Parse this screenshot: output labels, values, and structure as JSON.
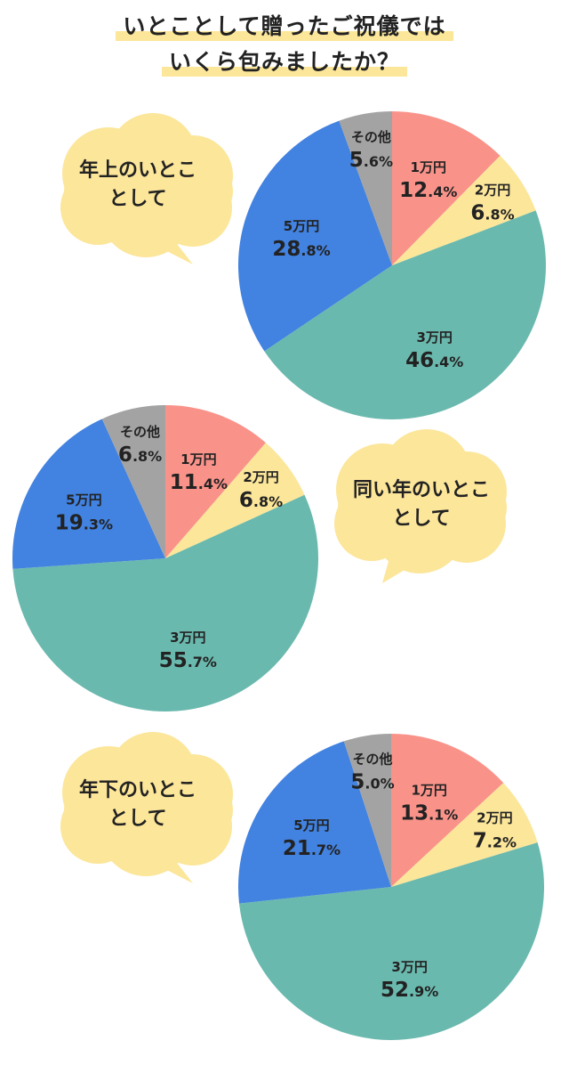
{
  "title": {
    "line1": "いとことして贈ったご祝儀では",
    "line2": "いくら包みましたか？"
  },
  "colors": {
    "1万円": "#f9938a",
    "2万円": "#fce69a",
    "3万円": "#6ab9ae",
    "5万円": "#4282e0",
    "その他": "#a3a3a3",
    "bubble": "#fce69a",
    "highlight": "#fce69a"
  },
  "chart_data": [
    {
      "type": "pie",
      "title": "年上のいとこ\nとして",
      "title_lines": [
        "年上のいとこ",
        "として"
      ],
      "slices": [
        {
          "label": "1万円",
          "value": 12.4,
          "display": "12.4%"
        },
        {
          "label": "2万円",
          "value": 6.8,
          "display": "6.8%"
        },
        {
          "label": "3万円",
          "value": 46.4,
          "display": "46.4%"
        },
        {
          "label": "5万円",
          "value": 28.8,
          "display": "28.8%"
        },
        {
          "label": "その他",
          "value": 5.6,
          "display": "5.6%"
        }
      ]
    },
    {
      "type": "pie",
      "title": "同い年のいとこ\nとして",
      "title_lines": [
        "同い年のいとこ",
        "として"
      ],
      "slices": [
        {
          "label": "1万円",
          "value": 11.4,
          "display": "11.4%"
        },
        {
          "label": "2万円",
          "value": 6.8,
          "display": "6.8%"
        },
        {
          "label": "3万円",
          "value": 55.7,
          "display": "55.7%"
        },
        {
          "label": "5万円",
          "value": 19.3,
          "display": "19.3%"
        },
        {
          "label": "その他",
          "value": 6.8,
          "display": "6.8%"
        }
      ]
    },
    {
      "type": "pie",
      "title": "年下のいとこ\nとして",
      "title_lines": [
        "年下のいとこ",
        "として"
      ],
      "slices": [
        {
          "label": "1万円",
          "value": 13.1,
          "display": "13.1%"
        },
        {
          "label": "2万円",
          "value": 7.2,
          "display": "7.2%"
        },
        {
          "label": "3万円",
          "value": 52.9,
          "display": "52.9%"
        },
        {
          "label": "5万円",
          "value": 21.7,
          "display": "21.7%"
        },
        {
          "label": "その他",
          "value": 5.0,
          "display": "5.0%"
        }
      ]
    }
  ]
}
